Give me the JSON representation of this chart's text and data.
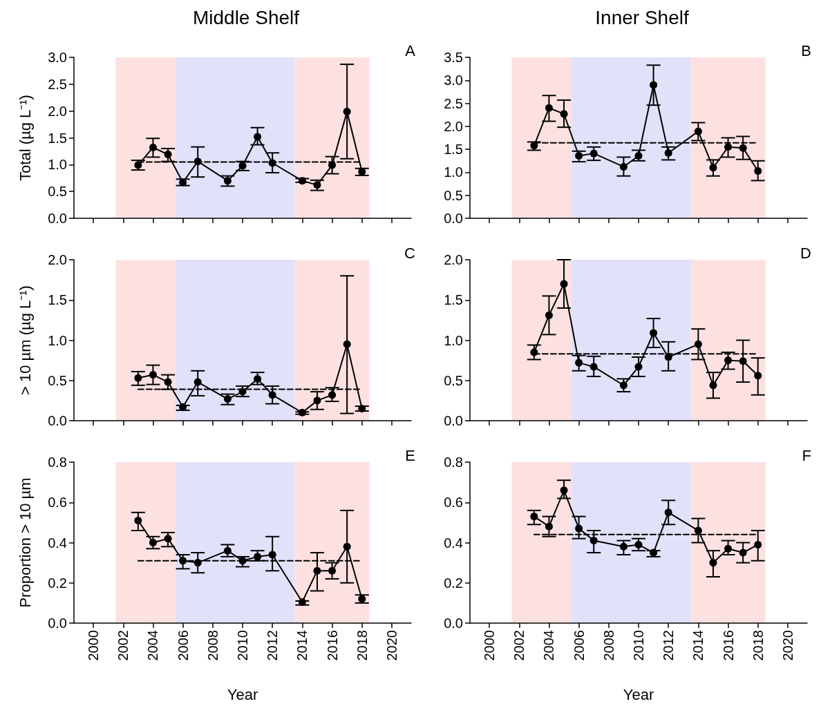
{
  "chart_data": [
    {
      "type": "line",
      "title": "Middle Shelf",
      "ylabel": "Total (µg L⁻¹)",
      "annotations": [
        "A"
      ],
      "tick_labels": "y",
      "xlim": [
        1998.7,
        2021.3
      ],
      "xticks": [
        2000,
        2002,
        2004,
        2006,
        2008,
        2010,
        2012,
        2014,
        2016,
        2018,
        2020
      ],
      "ylim": [
        0,
        3
      ],
      "yticks": [
        {
          "value": 0,
          "label": "0.0"
        },
        0.5,
        {
          "value": 1,
          "label": "1.0"
        },
        1.5,
        {
          "value": 2,
          "label": "2.0"
        },
        2.5,
        {
          "value": 3,
          "label": "3.0"
        }
      ],
      "bands": [
        {
          "axis": "x",
          "from": 2001.5,
          "to": 2005.5,
          "color": "#fde1e1"
        },
        {
          "axis": "x",
          "from": 2005.5,
          "to": 2013.5,
          "color": "#e1e1fa"
        },
        {
          "axis": "x",
          "from": 2013.5,
          "to": 2018.5,
          "color": "#fde1e1"
        }
      ],
      "series": [
        {
          "type": "line",
          "color": "#000000",
          "marker": "circle",
          "x": [
            2003,
            2004,
            2005,
            2006,
            2007,
            2009,
            2010,
            2011,
            2012,
            2014,
            2015,
            2016,
            2017,
            2018
          ],
          "values": [
            0.99,
            1.32,
            1.19,
            0.67,
            1.06,
            0.7,
            0.98,
            1.52,
            1.03,
            0.7,
            0.62,
            0.99,
            1.99,
            0.87
          ],
          "errors": [
            [
              0.9,
              1.08
            ],
            [
              1.14,
              1.49
            ],
            [
              1.06,
              1.3
            ],
            [
              0.61,
              0.73
            ],
            [
              0.77,
              1.33
            ],
            [
              0.6,
              0.79
            ],
            [
              0.89,
              1.06
            ],
            [
              1.37,
              1.69
            ],
            [
              0.85,
              1.22
            ],
            [
              0.67,
              0.74
            ],
            [
              0.52,
              0.71
            ],
            [
              0.83,
              1.15
            ],
            [
              1.11,
              2.87
            ],
            [
              0.8,
              0.93
            ]
          ]
        },
        {
          "type": "line",
          "color": "#000000",
          "marker": "none",
          "line_style": "dashed",
          "x": [
            2003,
            2018
          ],
          "values": [
            1.05,
            1.05
          ]
        }
      ]
    },
    {
      "type": "line",
      "title": "Inner Shelf",
      "annotations": [
        "B"
      ],
      "tick_labels": "y",
      "xlim": [
        1998.7,
        2021.3
      ],
      "xticks": [
        2000,
        2002,
        2004,
        2006,
        2008,
        2010,
        2012,
        2014,
        2016,
        2018,
        2020
      ],
      "ylim": [
        0,
        3.5
      ],
      "yticks": [
        {
          "value": 0,
          "label": "0.0"
        },
        0.5,
        {
          "value": 1,
          "label": "1.0"
        },
        1.5,
        {
          "value": 2,
          "label": "2.0"
        },
        2.5,
        {
          "value": 3,
          "label": "3.0"
        },
        3.5
      ],
      "bands": [
        {
          "axis": "x",
          "from": 2001.5,
          "to": 2005.5,
          "color": "#fde1e1"
        },
        {
          "axis": "x",
          "from": 2005.5,
          "to": 2013.5,
          "color": "#e1e1fa"
        },
        {
          "axis": "x",
          "from": 2013.5,
          "to": 2018.5,
          "color": "#fde1e1"
        }
      ],
      "series": [
        {
          "type": "line",
          "color": "#000000",
          "marker": "circle",
          "x": [
            2003,
            2004,
            2005,
            2006,
            2007,
            2009,
            2010,
            2011,
            2012,
            2014,
            2015,
            2016,
            2017,
            2018
          ],
          "values": [
            1.58,
            2.4,
            2.27,
            1.36,
            1.41,
            1.12,
            1.36,
            2.9,
            1.42,
            1.89,
            1.1,
            1.55,
            1.53,
            1.03
          ],
          "errors": [
            [
              1.48,
              1.66
            ],
            [
              2.11,
              2.67
            ],
            [
              1.98,
              2.57
            ],
            [
              1.23,
              1.46
            ],
            [
              1.26,
              1.55
            ],
            [
              0.92,
              1.33
            ],
            [
              1.25,
              1.48
            ],
            [
              2.46,
              3.33
            ],
            [
              1.27,
              1.55
            ],
            [
              1.69,
              2.08
            ],
            [
              0.92,
              1.27
            ],
            [
              1.33,
              1.75
            ],
            [
              1.28,
              1.78
            ],
            [
              0.82,
              1.25
            ]
          ]
        },
        {
          "type": "line",
          "color": "#000000",
          "marker": "none",
          "line_style": "dashed",
          "x": [
            2003,
            2018
          ],
          "values": [
            1.64,
            1.64
          ]
        }
      ]
    },
    {
      "type": "line",
      "ylabel": "> 10 µm (µg L⁻¹)",
      "annotations": [
        "C"
      ],
      "tick_labels": "y",
      "xlim": [
        1998.7,
        2021.3
      ],
      "xticks": [
        2000,
        2002,
        2004,
        2006,
        2008,
        2010,
        2012,
        2014,
        2016,
        2018,
        2020
      ],
      "ylim": [
        0,
        2
      ],
      "yticks": [
        {
          "value": 0,
          "label": "0.0"
        },
        0.5,
        {
          "value": 1,
          "label": "1.0"
        },
        1.5,
        {
          "value": 2,
          "label": "2.0"
        }
      ],
      "bands": [
        {
          "axis": "x",
          "from": 2001.5,
          "to": 2005.5,
          "color": "#fde1e1"
        },
        {
          "axis": "x",
          "from": 2005.5,
          "to": 2013.5,
          "color": "#e1e1fa"
        },
        {
          "axis": "x",
          "from": 2013.5,
          "to": 2018.5,
          "color": "#fde1e1"
        }
      ],
      "series": [
        {
          "type": "line",
          "color": "#000000",
          "marker": "circle",
          "x": [
            2003,
            2004,
            2005,
            2006,
            2007,
            2009,
            2010,
            2011,
            2012,
            2014,
            2015,
            2016,
            2017,
            2018
          ],
          "values": [
            0.53,
            0.57,
            0.48,
            0.17,
            0.48,
            0.27,
            0.36,
            0.52,
            0.32,
            0.1,
            0.25,
            0.32,
            0.95,
            0.15
          ],
          "errors": [
            [
              0.44,
              0.61
            ],
            [
              0.45,
              0.69
            ],
            [
              0.39,
              0.57
            ],
            [
              0.13,
              0.19
            ],
            [
              0.31,
              0.62
            ],
            [
              0.2,
              0.33
            ],
            [
              0.3,
              0.43
            ],
            [
              0.45,
              0.6
            ],
            [
              0.21,
              0.43
            ],
            [
              0.08,
              0.11
            ],
            [
              0.14,
              0.36
            ],
            [
              0.24,
              0.41
            ],
            [
              0.09,
              1.8
            ],
            [
              0.12,
              0.18
            ]
          ]
        },
        {
          "type": "line",
          "color": "#000000",
          "marker": "none",
          "line_style": "dashed",
          "x": [
            2003,
            2018
          ],
          "values": [
            0.39,
            0.39
          ]
        }
      ]
    },
    {
      "type": "line",
      "annotations": [
        "D"
      ],
      "tick_labels": "y",
      "xlim": [
        1998.7,
        2021.3
      ],
      "xticks": [
        2000,
        2002,
        2004,
        2006,
        2008,
        2010,
        2012,
        2014,
        2016,
        2018,
        2020
      ],
      "ylim": [
        0,
        2
      ],
      "yticks": [
        {
          "value": 0,
          "label": "0.0"
        },
        0.5,
        {
          "value": 1,
          "label": "1.0"
        },
        1.5,
        {
          "value": 2,
          "label": "2.0"
        }
      ],
      "bands": [
        {
          "axis": "x",
          "from": 2001.5,
          "to": 2005.5,
          "color": "#fde1e1"
        },
        {
          "axis": "x",
          "from": 2005.5,
          "to": 2013.5,
          "color": "#e1e1fa"
        },
        {
          "axis": "x",
          "from": 2013.5,
          "to": 2018.5,
          "color": "#fde1e1"
        }
      ],
      "series": [
        {
          "type": "line",
          "color": "#000000",
          "marker": "circle",
          "x": [
            2003,
            2004,
            2005,
            2006,
            2007,
            2009,
            2010,
            2011,
            2012,
            2014,
            2015,
            2016,
            2017,
            2018
          ],
          "values": [
            0.85,
            1.31,
            1.7,
            0.72,
            0.67,
            0.44,
            0.67,
            1.09,
            0.79,
            0.95,
            0.44,
            0.75,
            0.74,
            0.56
          ],
          "errors": [
            [
              0.76,
              0.94
            ],
            [
              1.07,
              1.55
            ],
            [
              1.4,
              2.0
            ],
            [
              0.62,
              0.81
            ],
            [
              0.55,
              0.8
            ],
            [
              0.36,
              0.52
            ],
            [
              0.55,
              0.79
            ],
            [
              0.91,
              1.27
            ],
            [
              0.62,
              0.98
            ],
            [
              0.76,
              1.14
            ],
            [
              0.28,
              0.6
            ],
            [
              0.64,
              0.85
            ],
            [
              0.48,
              1.0
            ],
            [
              0.32,
              0.78
            ]
          ]
        },
        {
          "type": "line",
          "color": "#000000",
          "marker": "none",
          "line_style": "dashed",
          "x": [
            2003,
            2018
          ],
          "values": [
            0.83,
            0.83
          ]
        }
      ]
    },
    {
      "type": "line",
      "xlabel": "Year",
      "ylabel": "Proportion > 10 µm",
      "annotations": [
        "E"
      ],
      "xlim": [
        1998.7,
        2021.3
      ],
      "xticks": [
        2000,
        2002,
        2004,
        2006,
        2008,
        2010,
        2012,
        2014,
        2016,
        2018,
        2020
      ],
      "ylim": [
        0,
        0.8
      ],
      "yticks": [
        {
          "value": 0,
          "label": "0.0"
        },
        0.2,
        0.4,
        0.6,
        0.8
      ],
      "bands": [
        {
          "axis": "x",
          "from": 2001.5,
          "to": 2005.5,
          "color": "#fde1e1"
        },
        {
          "axis": "x",
          "from": 2005.5,
          "to": 2013.5,
          "color": "#e1e1fa"
        },
        {
          "axis": "x",
          "from": 2013.5,
          "to": 2018.5,
          "color": "#fde1e1"
        }
      ],
      "series": [
        {
          "type": "line",
          "color": "#000000",
          "marker": "circle",
          "x": [
            2003,
            2004,
            2005,
            2006,
            2007,
            2009,
            2010,
            2011,
            2012,
            2014,
            2015,
            2016,
            2017,
            2018
          ],
          "values": [
            0.51,
            0.4,
            0.42,
            0.31,
            0.3,
            0.36,
            0.31,
            0.33,
            0.34,
            0.105,
            0.26,
            0.26,
            0.38,
            0.12
          ],
          "errors": [
            [
              0.46,
              0.55
            ],
            [
              0.37,
              0.43
            ],
            [
              0.38,
              0.45
            ],
            [
              0.27,
              0.34
            ],
            [
              0.25,
              0.35
            ],
            [
              0.33,
              0.39
            ],
            [
              0.28,
              0.33
            ],
            [
              0.31,
              0.36
            ],
            [
              0.26,
              0.43
            ],
            [
              0.09,
              0.11
            ],
            [
              0.16,
              0.35
            ],
            [
              0.22,
              0.3
            ],
            [
              0.2,
              0.56
            ],
            [
              0.1,
              0.14
            ]
          ]
        },
        {
          "type": "line",
          "color": "#000000",
          "marker": "none",
          "line_style": "dashed",
          "x": [
            2003,
            2018
          ],
          "values": [
            0.31,
            0.31
          ]
        }
      ]
    },
    {
      "type": "line",
      "xlabel": "Year",
      "annotations": [
        "F"
      ],
      "xlim": [
        1998.7,
        2021.3
      ],
      "xticks": [
        2000,
        2002,
        2004,
        2006,
        2008,
        2010,
        2012,
        2014,
        2016,
        2018,
        2020
      ],
      "ylim": [
        0,
        0.8
      ],
      "yticks": [
        {
          "value": 0,
          "label": "0.0"
        },
        0.2,
        0.4,
        0.6,
        0.8
      ],
      "bands": [
        {
          "axis": "x",
          "from": 2001.5,
          "to": 2005.5,
          "color": "#fde1e1"
        },
        {
          "axis": "x",
          "from": 2005.5,
          "to": 2013.5,
          "color": "#e1e1fa"
        },
        {
          "axis": "x",
          "from": 2013.5,
          "to": 2018.5,
          "color": "#fde1e1"
        }
      ],
      "series": [
        {
          "type": "line",
          "color": "#000000",
          "marker": "circle",
          "x": [
            2003,
            2004,
            2005,
            2006,
            2007,
            2009,
            2010,
            2011,
            2012,
            2014,
            2015,
            2016,
            2017,
            2018
          ],
          "values": [
            0.53,
            0.48,
            0.66,
            0.47,
            0.41,
            0.38,
            0.39,
            0.35,
            0.55,
            0.46,
            0.3,
            0.37,
            0.35,
            0.39
          ],
          "errors": [
            [
              0.49,
              0.56
            ],
            [
              0.43,
              0.53
            ],
            [
              0.62,
              0.71
            ],
            [
              0.42,
              0.53
            ],
            [
              0.35,
              0.46
            ],
            [
              0.34,
              0.41
            ],
            [
              0.36,
              0.42
            ],
            [
              0.33,
              0.36
            ],
            [
              0.49,
              0.61
            ],
            [
              0.4,
              0.52
            ],
            [
              0.23,
              0.36
            ],
            [
              0.34,
              0.41
            ],
            [
              0.3,
              0.4
            ],
            [
              0.31,
              0.46
            ]
          ]
        },
        {
          "type": "line",
          "color": "#000000",
          "marker": "none",
          "line_style": "dashed",
          "x": [
            2003,
            2018
          ],
          "values": [
            0.44,
            0.44
          ]
        }
      ]
    }
  ]
}
